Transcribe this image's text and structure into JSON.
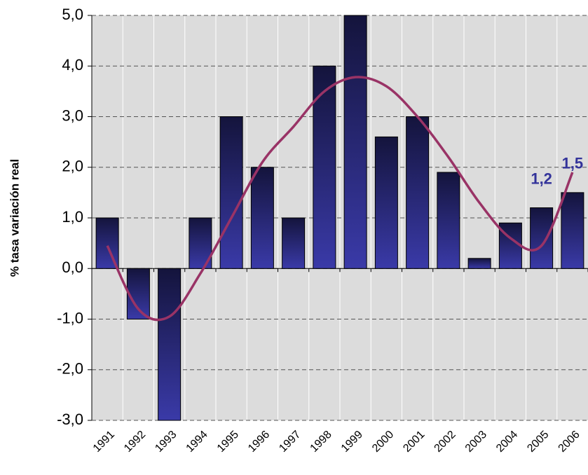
{
  "chart_data": {
    "type": "bar",
    "y_label": "% tasa variación real",
    "categories": [
      "1991",
      "1992",
      "1993",
      "1994",
      "1995",
      "1996",
      "1997",
      "1998",
      "1999",
      "2000",
      "2001",
      "2002",
      "2003",
      "2004",
      "2005",
      "2006"
    ],
    "values": [
      1.0,
      -1.0,
      -3.0,
      1.0,
      3.0,
      2.0,
      1.0,
      4.0,
      5.0,
      2.6,
      3.0,
      1.9,
      0.2,
      0.9,
      1.2,
      1.5
    ],
    "value_labels": [
      null,
      null,
      null,
      null,
      null,
      null,
      null,
      null,
      null,
      null,
      null,
      null,
      null,
      null,
      "1,2",
      "1,5"
    ],
    "color": "#3a3aa8",
    "trend": {
      "color": "#993366",
      "values": [
        0.45,
        -0.8,
        -0.95,
        -0.1,
        1.0,
        2.1,
        2.8,
        3.5,
        3.78,
        3.6,
        3.0,
        2.2,
        1.3,
        0.6,
        0.45,
        1.9
      ]
    },
    "ylim": [
      -3,
      5
    ],
    "yticks": [
      {
        "value": -3,
        "label": "-3,0"
      },
      {
        "value": -2,
        "label": "-2,0"
      },
      {
        "value": -1,
        "label": "-1,0"
      },
      {
        "value": 0,
        "label": "0,0"
      },
      {
        "value": 1,
        "label": "1,0"
      },
      {
        "value": 2,
        "label": "2,0"
      },
      {
        "value": 3,
        "label": "3,0"
      },
      {
        "value": 4,
        "label": "4,0"
      },
      {
        "value": 5,
        "label": "5,0"
      }
    ],
    "grid": true
  }
}
